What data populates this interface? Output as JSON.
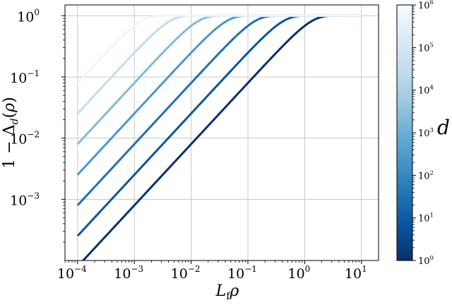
{
  "chart_data": {
    "type": "line",
    "xscale": "log",
    "yscale": "log",
    "xlabel": "L_f ρ",
    "ylabel": "1 − Δ_d(ρ)",
    "xlim": [
      6e-05,
      20
    ],
    "ylim": [
      0.0001,
      1.5
    ],
    "grid": true,
    "x_ticks": [
      {
        "base": "10",
        "exp": "−4",
        "value": 0.0001
      },
      {
        "base": "10",
        "exp": "−3",
        "value": 0.001
      },
      {
        "base": "10",
        "exp": "−2",
        "value": 0.01
      },
      {
        "base": "10",
        "exp": "−1",
        "value": 0.1
      },
      {
        "base": "10",
        "exp": "0",
        "value": 1
      },
      {
        "base": "10",
        "exp": "1",
        "value": 10
      }
    ],
    "y_ticks": [
      {
        "base": "10",
        "exp": "−3",
        "value": 0.001
      },
      {
        "base": "10",
        "exp": "−2",
        "value": 0.01
      },
      {
        "base": "10",
        "exp": "−1",
        "value": 0.1
      },
      {
        "base": "10",
        "exp": "0",
        "value": 1
      }
    ],
    "x_range": [
      0.0001,
      10
    ],
    "series": [
      {
        "d": 1,
        "color": "#08306b"
      },
      {
        "d": 10,
        "color": "#0b559f"
      },
      {
        "d": 100,
        "color": "#2070b4"
      },
      {
        "d": 1000,
        "color": "#4a98c9"
      },
      {
        "d": 10000,
        "color": "#82bbdb"
      },
      {
        "d": 100000,
        "color": "#c6dbef"
      },
      {
        "d": 1000000,
        "color": "#eef5fc"
      }
    ],
    "colorbar": {
      "label": "d",
      "scale": "log",
      "range": [
        1,
        1000000
      ],
      "cmap": "Blues_r",
      "ticks": [
        {
          "base": "10",
          "exp": "0",
          "value": 1
        },
        {
          "base": "10",
          "exp": "1",
          "value": 10
        },
        {
          "base": "10",
          "exp": "2",
          "value": 100
        },
        {
          "base": "10",
          "exp": "3",
          "value": 1000
        },
        {
          "base": "10",
          "exp": "4",
          "value": 10000
        },
        {
          "base": "10",
          "exp": "5",
          "value": 100000
        },
        {
          "base": "10",
          "exp": "6",
          "value": 1000000
        }
      ],
      "stops": [
        "#08306b",
        "#08519c",
        "#2171b5",
        "#4292c6",
        "#6baed6",
        "#9ecae1",
        "#c6dbef",
        "#deebf7",
        "#f7fbff"
      ]
    }
  }
}
